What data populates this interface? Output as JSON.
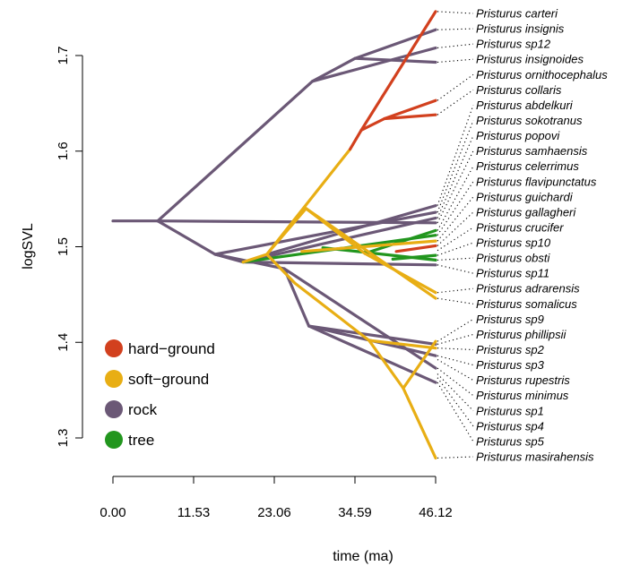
{
  "chart_data": {
    "type": "line",
    "title": "",
    "xlabel": "time (ma)",
    "ylabel": "logSVL",
    "xlim": [
      0,
      46.12
    ],
    "ylim": [
      1.28,
      1.745
    ],
    "x_ticks": [
      "0.00",
      "11.53",
      "23.06",
      "34.59",
      "46.12"
    ],
    "x_tick_values": [
      0,
      11.53,
      23.06,
      34.59,
      46.12
    ],
    "y_ticks": [
      "1.3",
      "1.4",
      "1.5",
      "1.6",
      "1.7"
    ],
    "y_tick_values": [
      1.3,
      1.4,
      1.5,
      1.6,
      1.7
    ],
    "legend": {
      "position": "bottom-left",
      "entries": [
        {
          "label": "hard−ground",
          "color": "#D2401E"
        },
        {
          "label": "soft−ground",
          "color": "#E8AE14"
        },
        {
          "label": "rock",
          "color": "#6B5876"
        },
        {
          "label": "tree",
          "color": "#22961E"
        }
      ]
    },
    "tips": [
      {
        "name": "Pristurus carteri",
        "x": 46.12,
        "y": 1.746
      },
      {
        "name": "Pristurus insignis",
        "x": 46.12,
        "y": 1.727
      },
      {
        "name": "Pristurus sp12",
        "x": 46.12,
        "y": 1.708
      },
      {
        "name": "Pristurus insignoides",
        "x": 46.12,
        "y": 1.693
      },
      {
        "name": "Pristurus ornithocephalus",
        "x": 46.12,
        "y": 1.653
      },
      {
        "name": "Pristurus collaris",
        "x": 46.12,
        "y": 1.638
      },
      {
        "name": "Pristurus abdelkuri",
        "x": 46.12,
        "y": 1.543
      },
      {
        "name": "Pristurus sokotranus",
        "x": 46.12,
        "y": 1.536
      },
      {
        "name": "Pristurus popovi",
        "x": 46.12,
        "y": 1.53
      },
      {
        "name": "Pristurus samhaensis",
        "x": 46.12,
        "y": 1.525
      },
      {
        "name": "Pristurus celerrimus",
        "x": 46.12,
        "y": 1.517
      },
      {
        "name": "Pristurus flavipunctatus",
        "x": 46.12,
        "y": 1.512
      },
      {
        "name": "Pristurus guichardi",
        "x": 46.12,
        "y": 1.506
      },
      {
        "name": "Pristurus gallagheri",
        "x": 46.12,
        "y": 1.501
      },
      {
        "name": "Pristurus crucifer",
        "x": 46.12,
        "y": 1.496
      },
      {
        "name": "Pristurus sp10",
        "x": 46.12,
        "y": 1.491
      },
      {
        "name": "Pristurus obsti",
        "x": 46.12,
        "y": 1.486
      },
      {
        "name": "Pristurus sp11",
        "x": 46.12,
        "y": 1.481
      },
      {
        "name": "Pristurus adrarensis",
        "x": 46.12,
        "y": 1.452
      },
      {
        "name": "Pristurus somalicus",
        "x": 46.12,
        "y": 1.446
      },
      {
        "name": "Pristurus sp9",
        "x": 46.12,
        "y": 1.401
      },
      {
        "name": "Pristurus phillipsii",
        "x": 46.12,
        "y": 1.398
      },
      {
        "name": "Pristurus sp2",
        "x": 46.12,
        "y": 1.394
      },
      {
        "name": "Pristurus sp3",
        "x": 46.12,
        "y": 1.386
      },
      {
        "name": "Pristurus rupestris",
        "x": 46.12,
        "y": 1.382
      },
      {
        "name": "Pristurus minimus",
        "x": 46.12,
        "y": 1.373
      },
      {
        "name": "Pristurus sp1",
        "x": 46.12,
        "y": 1.367
      },
      {
        "name": "Pristurus sp4",
        "x": 46.12,
        "y": 1.363
      },
      {
        "name": "Pristurus sp5",
        "x": 46.12,
        "y": 1.358
      },
      {
        "name": "Pristurus masirahensis",
        "x": 46.12,
        "y": 1.279
      }
    ],
    "branches": [
      {
        "state": "rock",
        "points": [
          [
            0,
            1.527
          ],
          [
            6.4,
            1.527
          ]
        ]
      },
      {
        "state": "rock",
        "points": [
          [
            6.4,
            1.527
          ],
          [
            28.5,
            1.673
          ],
          [
            34.6,
            1.697
          ],
          [
            46.12,
            1.727
          ]
        ]
      },
      {
        "state": "rock",
        "points": [
          [
            28.5,
            1.673
          ],
          [
            46.12,
            1.708
          ]
        ]
      },
      {
        "state": "rock",
        "points": [
          [
            34.6,
            1.697
          ],
          [
            46.12,
            1.693
          ]
        ]
      },
      {
        "state": "rock",
        "points": [
          [
            6.4,
            1.527
          ],
          [
            46.12,
            1.525
          ]
        ]
      },
      {
        "state": "rock",
        "points": [
          [
            6.4,
            1.527
          ],
          [
            14.6,
            1.492
          ],
          [
            46.12,
            1.536
          ]
        ]
      },
      {
        "state": "rock",
        "points": [
          [
            14.6,
            1.492
          ],
          [
            18.6,
            1.484
          ],
          [
            46.12,
            1.53
          ]
        ]
      },
      {
        "state": "rock",
        "points": [
          [
            18.6,
            1.484
          ],
          [
            46.12,
            1.481
          ]
        ]
      },
      {
        "state": "rock",
        "points": [
          [
            14.6,
            1.492
          ],
          [
            24.5,
            1.477
          ],
          [
            28.0,
            1.417
          ],
          [
            46.12,
            1.398
          ]
        ]
      },
      {
        "state": "rock",
        "points": [
          [
            24.5,
            1.477
          ],
          [
            46.12,
            1.373
          ]
        ]
      },
      {
        "state": "rock",
        "points": [
          [
            28.0,
            1.417
          ],
          [
            46.12,
            1.386
          ]
        ]
      },
      {
        "state": "rock",
        "points": [
          [
            28.0,
            1.417
          ],
          [
            46.12,
            1.358
          ]
        ]
      },
      {
        "state": "rock",
        "points": [
          [
            22.0,
            1.492
          ],
          [
            46.12,
            1.543
          ]
        ]
      },
      {
        "state": "tree",
        "points": [
          [
            18.6,
            1.484
          ],
          [
            46.12,
            1.512
          ]
        ]
      },
      {
        "state": "tree",
        "points": [
          [
            30.0,
            1.499
          ],
          [
            46.12,
            1.486
          ]
        ]
      },
      {
        "state": "tree",
        "points": [
          [
            36.0,
            1.493
          ],
          [
            46.12,
            1.517
          ]
        ]
      },
      {
        "state": "tree",
        "points": [
          [
            40.0,
            1.487
          ],
          [
            46.12,
            1.491
          ]
        ]
      },
      {
        "state": "soft-ground",
        "points": [
          [
            18.6,
            1.484
          ],
          [
            22.0,
            1.492
          ],
          [
            27.6,
            1.54
          ],
          [
            46.12,
            1.446
          ]
        ]
      },
      {
        "state": "soft-ground",
        "points": [
          [
            27.6,
            1.54
          ],
          [
            36.0,
            1.493
          ],
          [
            46.12,
            1.452
          ]
        ]
      },
      {
        "state": "soft-ground",
        "points": [
          [
            22.0,
            1.492
          ],
          [
            26.0,
            1.462
          ],
          [
            36.6,
            1.402
          ],
          [
            46.12,
            1.394
          ]
        ]
      },
      {
        "state": "soft-ground",
        "points": [
          [
            36.6,
            1.402
          ],
          [
            41.5,
            1.352
          ],
          [
            46.12,
            1.279
          ]
        ]
      },
      {
        "state": "soft-ground",
        "points": [
          [
            41.5,
            1.352
          ],
          [
            46.12,
            1.401
          ]
        ]
      },
      {
        "state": "soft-ground",
        "points": [
          [
            27.0,
            1.495
          ],
          [
            46.12,
            1.506
          ]
        ]
      },
      {
        "state": "soft-ground",
        "points": [
          [
            22.0,
            1.492
          ],
          [
            33.9,
            1.602
          ]
        ]
      },
      {
        "state": "hard-ground",
        "points": [
          [
            33.9,
            1.602
          ],
          [
            35.5,
            1.622
          ],
          [
            46.12,
            1.746
          ]
        ]
      },
      {
        "state": "hard-ground",
        "points": [
          [
            35.5,
            1.622
          ],
          [
            38.8,
            1.634
          ],
          [
            46.12,
            1.653
          ]
        ]
      },
      {
        "state": "hard-ground",
        "points": [
          [
            38.8,
            1.634
          ],
          [
            46.12,
            1.638
          ]
        ]
      },
      {
        "state": "hard-ground",
        "points": [
          [
            40.5,
            1.495
          ],
          [
            46.12,
            1.501
          ]
        ]
      }
    ]
  }
}
